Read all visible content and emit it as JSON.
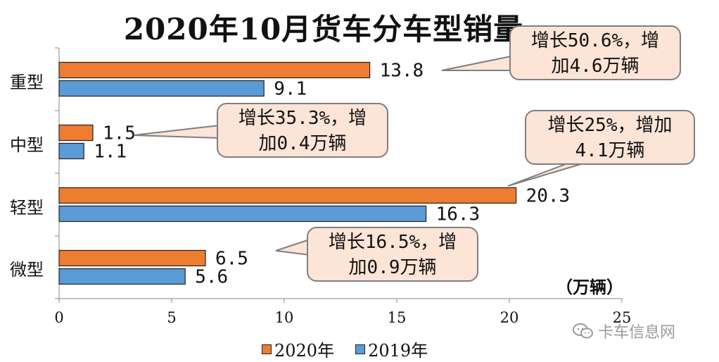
{
  "chart_data": {
    "type": "bar",
    "orientation": "horizontal",
    "title": "2020年10月货车分车型销量",
    "categories": [
      "重型",
      "中型",
      "轻型",
      "微型"
    ],
    "series": [
      {
        "name": "2020年",
        "values": [
          13.8,
          1.5,
          20.3,
          6.5
        ],
        "color": "#ed7d31"
      },
      {
        "name": "2019年",
        "values": [
          9.1,
          1.1,
          16.3,
          5.6
        ],
        "color": "#5b9bd5"
      }
    ],
    "data_labels": [
      [
        "13.8",
        "1.5",
        "20.3",
        "6.5"
      ],
      [
        "9.1",
        "1.1",
        "16.3",
        "5.6"
      ]
    ],
    "xlim": [
      0,
      25
    ],
    "xticks": [
      "0",
      "5",
      "10",
      "15",
      "20",
      "25"
    ],
    "unit_label": "（万辆）",
    "legend_position": "bottom",
    "grid": false,
    "annotations": [
      {
        "category": "重型",
        "line1": "增长50.6%，增",
        "line2": "加4.6万辆"
      },
      {
        "category": "中型",
        "line1": "增长35.3%，增",
        "line2": "加0.4万辆"
      },
      {
        "category": "轻型",
        "line1": "增长25%，增加",
        "line2": "4.1万辆"
      },
      {
        "category": "微型",
        "line1": "增长16.5%，增",
        "line2": "加0.9万辆"
      }
    ]
  },
  "watermark": "卡车信息网"
}
